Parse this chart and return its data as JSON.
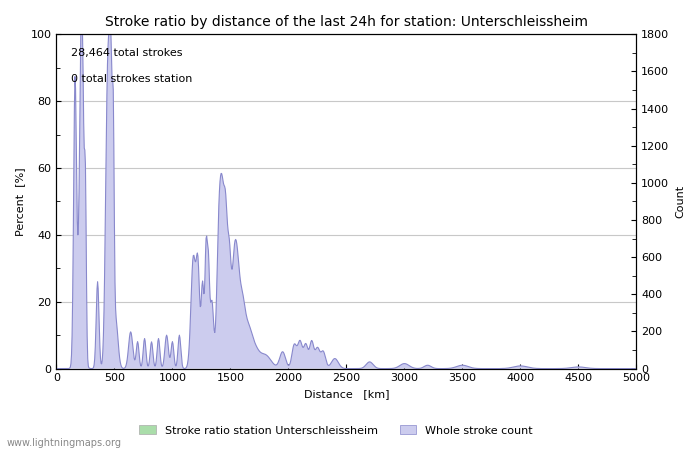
{
  "title": "Stroke ratio by distance of the last 24h for station: Unterschleissheim",
  "xlabel": "Distance   [km]",
  "ylabel_left": "Percent  [%]",
  "ylabel_right": "Count",
  "annotation_line1": "28,464 total strokes",
  "annotation_line2": "0 total strokes station",
  "xlim": [
    0,
    5000
  ],
  "ylim_left": [
    0,
    100
  ],
  "ylim_right": [
    0,
    1800
  ],
  "xticks": [
    0,
    500,
    1000,
    1500,
    2000,
    2500,
    3000,
    3500,
    4000,
    4500,
    5000
  ],
  "yticks_left": [
    0,
    20,
    40,
    60,
    80,
    100
  ],
  "yticks_right": [
    0,
    200,
    400,
    600,
    800,
    1000,
    1200,
    1400,
    1600,
    1800
  ],
  "line_color": "#8888cc",
  "fill_color": "#ccccee",
  "station_fill_color": "#aaddaa",
  "background_color": "#ffffff",
  "grid_color": "#c8c8c8",
  "watermark": "www.lightningmaps.org",
  "legend_label_station": "Stroke ratio station Unterschleissheim",
  "legend_label_whole": "Whole stroke count",
  "title_fontsize": 10,
  "axis_fontsize": 8,
  "tick_fontsize": 8,
  "annotation_fontsize": 8
}
